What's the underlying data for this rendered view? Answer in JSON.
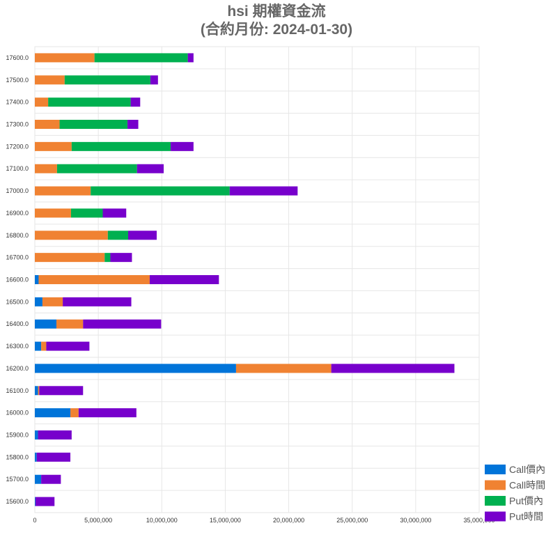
{
  "chart_data": {
    "type": "bar",
    "orientation": "horizontal",
    "stacked": true,
    "title": "hsi 期權資金流",
    "subtitle": "(合約月份: 2024-01-30)",
    "xlabel": "",
    "ylabel": "",
    "xlim": [
      0,
      35000000
    ],
    "x_ticks": [
      "0",
      "5,000,000",
      "10,000,000",
      "15,000,000",
      "20,000,000",
      "25,000,000",
      "30,000,000",
      "35,000,000"
    ],
    "x_tick_values": [
      0,
      5000000,
      10000000,
      15000000,
      20000000,
      25000000,
      30000000,
      35000000
    ],
    "grid": true,
    "legend_position": "bottom-right",
    "categories": [
      "17600.0",
      "17500.0",
      "17400.0",
      "17300.0",
      "17200.0",
      "17100.0",
      "17000.0",
      "16900.0",
      "16800.0",
      "16700.0",
      "16600.0",
      "16500.0",
      "16400.0",
      "16300.0",
      "16200.0",
      "16100.0",
      "16000.0",
      "15900.0",
      "15800.0",
      "15700.0",
      "15600.0"
    ],
    "series": [
      {
        "name": "Call價內",
        "color": "#0074d9",
        "values": [
          0,
          0,
          0,
          0,
          0,
          0,
          0,
          0,
          0,
          0,
          300000,
          600000,
          1700000,
          500000,
          15850000,
          250000,
          2800000,
          250000,
          150000,
          500000,
          50000
        ]
      },
      {
        "name": "Call時間",
        "color": "#f08232",
        "values": [
          4700000,
          2350000,
          1050000,
          1950000,
          2900000,
          1750000,
          4400000,
          2850000,
          5750000,
          5500000,
          8750000,
          1600000,
          2100000,
          400000,
          7500000,
          100000,
          650000,
          0,
          0,
          0,
          0
        ]
      },
      {
        "name": "Put價內",
        "color": "#00b050",
        "values": [
          7350000,
          6750000,
          6500000,
          5350000,
          7800000,
          6300000,
          10950000,
          2500000,
          1600000,
          450000,
          0,
          0,
          0,
          0,
          0,
          0,
          0,
          0,
          0,
          0,
          0
        ]
      },
      {
        "name": "Put時間",
        "color": "#7700cc",
        "values": [
          450000,
          600000,
          750000,
          850000,
          1800000,
          2100000,
          5350000,
          1850000,
          2250000,
          1700000,
          5450000,
          5400000,
          6150000,
          3400000,
          9700000,
          3450000,
          4550000,
          2650000,
          2650000,
          1550000,
          1500000
        ]
      }
    ]
  }
}
